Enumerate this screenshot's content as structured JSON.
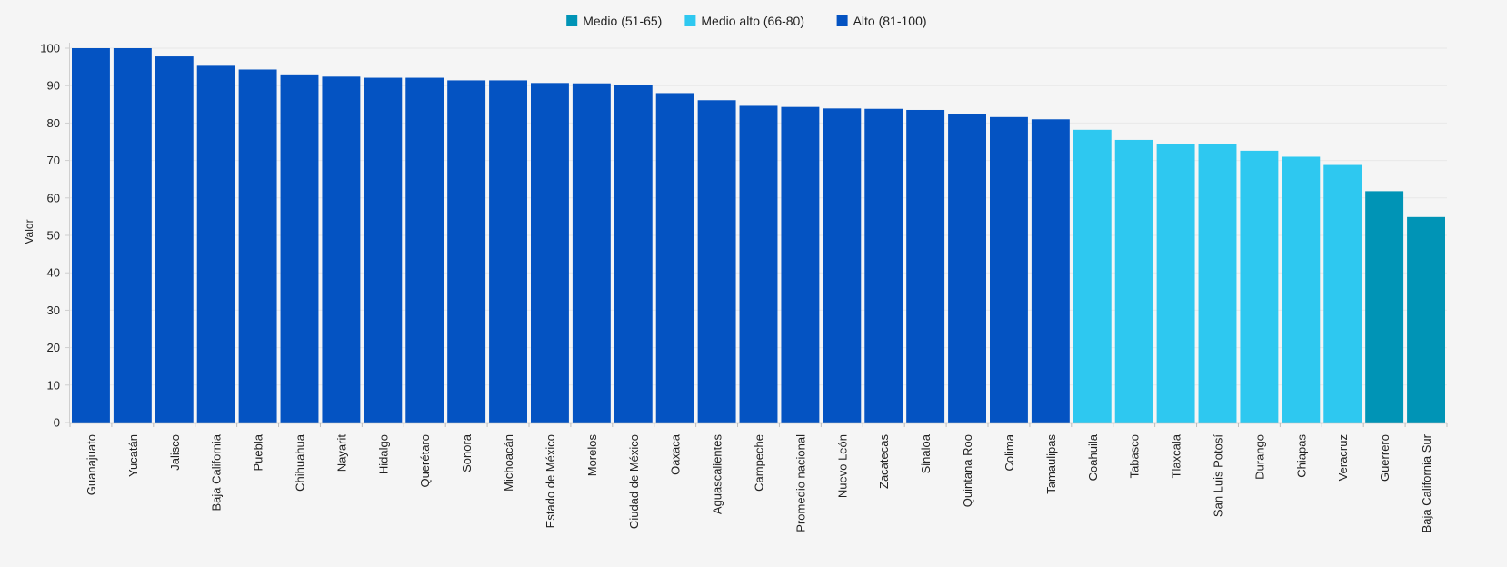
{
  "chart_data": {
    "type": "bar",
    "title": "",
    "xlabel": "",
    "ylabel": "Valor",
    "ylim": [
      0,
      100
    ],
    "yticks": [
      0,
      10,
      20,
      30,
      40,
      50,
      60,
      70,
      80,
      90,
      100
    ],
    "grid": "horizontal",
    "legend_position": "top-center",
    "legend": [
      {
        "key": "medio",
        "label": "Medio (51-65)",
        "color": "#0094b6"
      },
      {
        "key": "medio_alto",
        "label": "Medio alto (66-80)",
        "color": "#2ec8f0"
      },
      {
        "key": "alto",
        "label": "Alto (81-100)",
        "color": "#0453c2"
      }
    ],
    "categories": [
      "Guanajuato",
      "Yucatán",
      "Jalisco",
      "Baja California",
      "Puebla",
      "Chihuahua",
      "Nayarit",
      "Hidalgo",
      "Querétaro",
      "Sonora",
      "Michoacán",
      "Estado de México",
      "Morelos",
      "Ciudad de México",
      "Oaxaca",
      "Aguascalientes",
      "Campeche",
      "Promedio nacional",
      "Nuevo León",
      "Zacatecas",
      "Sinaloa",
      "Quintana Roo",
      "Colima",
      "Tamaulipas",
      "Coahuila",
      "Tabasco",
      "Tlaxcala",
      "San Luis Potosí",
      "Durango",
      "Chiapas",
      "Veracruz",
      "Guerrero",
      "Baja California Sur"
    ],
    "values": [
      100,
      100,
      97.8,
      95.3,
      94.3,
      93,
      92.4,
      92.1,
      92.1,
      91.4,
      91.4,
      90.7,
      90.6,
      90.2,
      88,
      86.1,
      84.6,
      84.3,
      83.9,
      83.8,
      83.5,
      82.3,
      81.6,
      81,
      78.2,
      75.5,
      74.5,
      74.4,
      72.6,
      71,
      68.8,
      61.8,
      54.9
    ],
    "groups": [
      "alto",
      "alto",
      "alto",
      "alto",
      "alto",
      "alto",
      "alto",
      "alto",
      "alto",
      "alto",
      "alto",
      "alto",
      "alto",
      "alto",
      "alto",
      "alto",
      "alto",
      "alto",
      "alto",
      "alto",
      "alto",
      "alto",
      "alto",
      "alto",
      "medio_alto",
      "medio_alto",
      "medio_alto",
      "medio_alto",
      "medio_alto",
      "medio_alto",
      "medio_alto",
      "medio",
      "medio"
    ]
  }
}
